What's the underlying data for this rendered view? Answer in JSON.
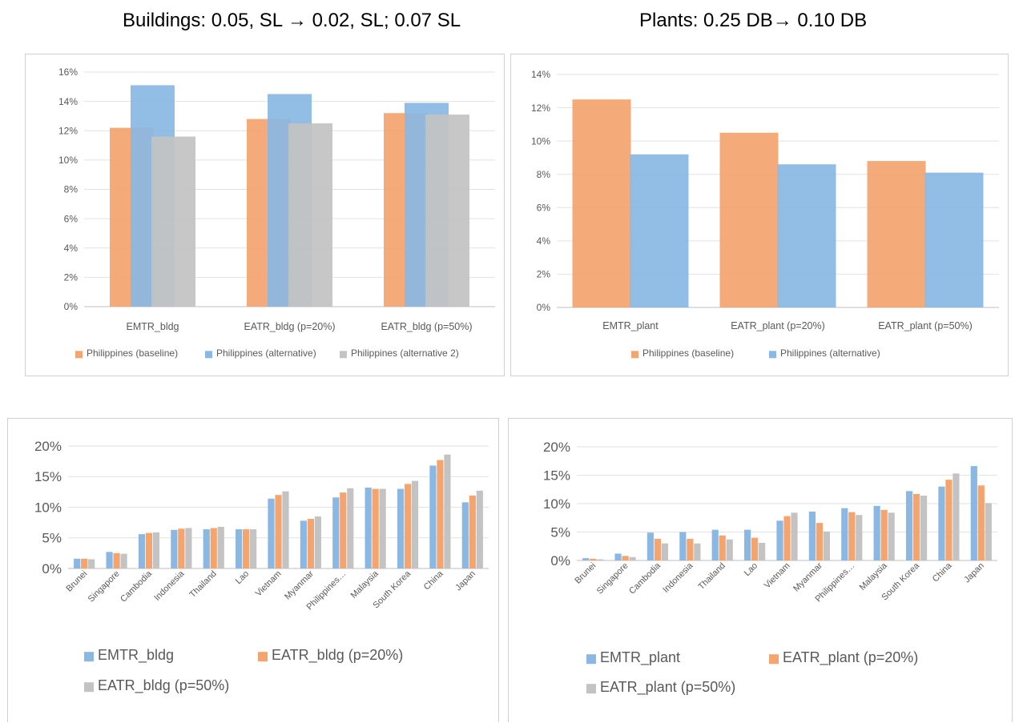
{
  "headings": {
    "buildings": "Buildings: 0.05, SL → 0.02, SL; 0.07 SL",
    "plants": "Plants: 0.25 DB→ 0.10 DB"
  },
  "colors": {
    "orange": "#f4a46f",
    "blue": "#8ab8e2",
    "gray": "#c3c3c3",
    "grid": "#e2e2e2",
    "axis": "#bfbfbf",
    "text": "#595959"
  },
  "chart_data": [
    {
      "type": "bar",
      "title": "",
      "ylim": [
        0,
        0.16
      ],
      "ytick_step": 0.02,
      "grid": true,
      "legend_position": "bottom",
      "overlap": true,
      "categories": [
        "EMTR_bldg",
        "EATR_bldg  (p=20%)",
        "EATR_bldg  (p=50%)"
      ],
      "series": [
        {
          "name": "Philippines (baseline)",
          "color": "#f4a46f",
          "values": [
            0.122,
            0.128,
            0.132
          ]
        },
        {
          "name": "Philippines (alternative)",
          "color": "#8ab8e2",
          "values": [
            0.151,
            0.145,
            0.139
          ]
        },
        {
          "name": "Philippines (alternative 2)",
          "color": "#c3c3c3",
          "values": [
            0.116,
            0.125,
            0.131
          ]
        }
      ]
    },
    {
      "type": "bar",
      "title": "",
      "ylim": [
        0,
        0.14
      ],
      "ytick_step": 0.02,
      "grid": true,
      "legend_position": "bottom",
      "overlap": true,
      "categories": [
        "EMTR_plant",
        "EATR_plant  (p=20%)",
        "EATR_plant  (p=50%)"
      ],
      "series": [
        {
          "name": "Philippines (baseline)",
          "color": "#f4a46f",
          "values": [
            0.125,
            0.105,
            0.088
          ]
        },
        {
          "name": "Philippines (alternative)",
          "color": "#8ab8e2",
          "values": [
            0.092,
            0.086,
            0.081
          ]
        }
      ]
    },
    {
      "type": "bar",
      "title": "",
      "ylim": [
        0,
        0.2
      ],
      "ytick_step": 0.05,
      "grid": true,
      "legend_position": "bottom",
      "overlap": false,
      "categories": [
        "Brunei",
        "Singapore",
        "Cambodia",
        "Indonesia",
        "Thailand",
        "Lao",
        "Vietnam",
        "Myanmar",
        "Philippines…",
        "Malaysia",
        "South Korea",
        "China",
        "Japan"
      ],
      "series": [
        {
          "name": "EMTR_bldg",
          "color": "#8ab8e2",
          "values": [
            0.016,
            0.027,
            0.056,
            0.063,
            0.064,
            0.064,
            0.114,
            0.078,
            0.116,
            0.132,
            0.13,
            0.168,
            0.108
          ]
        },
        {
          "name": "EATR_bldg (p=20%)",
          "color": "#f4a46f",
          "values": [
            0.016,
            0.025,
            0.058,
            0.065,
            0.066,
            0.064,
            0.12,
            0.081,
            0.124,
            0.13,
            0.138,
            0.177,
            0.119
          ]
        },
        {
          "name": "EATR_bldg (p=50%)",
          "color": "#c3c3c3",
          "values": [
            0.015,
            0.024,
            0.059,
            0.066,
            0.068,
            0.064,
            0.126,
            0.085,
            0.131,
            0.13,
            0.143,
            0.186,
            0.127
          ]
        }
      ]
    },
    {
      "type": "bar",
      "title": "",
      "ylim": [
        0,
        0.2
      ],
      "ytick_step": 0.05,
      "grid": true,
      "legend_position": "bottom",
      "overlap": false,
      "categories": [
        "Brunei",
        "Singapore",
        "Cambodia",
        "Indonesia",
        "Thailand",
        "Lao",
        "Vietnam",
        "Myanmar",
        "Philippines…",
        "Malaysia",
        "South Korea",
        "China",
        "Japan"
      ],
      "series": [
        {
          "name": "EMTR_plant",
          "color": "#8ab8e2",
          "values": [
            0.004,
            0.012,
            0.049,
            0.05,
            0.054,
            0.054,
            0.07,
            0.086,
            0.092,
            0.096,
            0.122,
            0.13,
            0.166
          ]
        },
        {
          "name": "EATR_plant (p=20%)",
          "color": "#f4a46f",
          "values": [
            0.003,
            0.008,
            0.038,
            0.038,
            0.044,
            0.04,
            0.078,
            0.066,
            0.085,
            0.089,
            0.117,
            0.142,
            0.132
          ]
        },
        {
          "name": "EATR_plant (p=50%)",
          "color": "#c3c3c3",
          "values": [
            0.002,
            0.006,
            0.03,
            0.03,
            0.037,
            0.031,
            0.084,
            0.051,
            0.08,
            0.084,
            0.114,
            0.153,
            0.101
          ]
        }
      ]
    }
  ]
}
